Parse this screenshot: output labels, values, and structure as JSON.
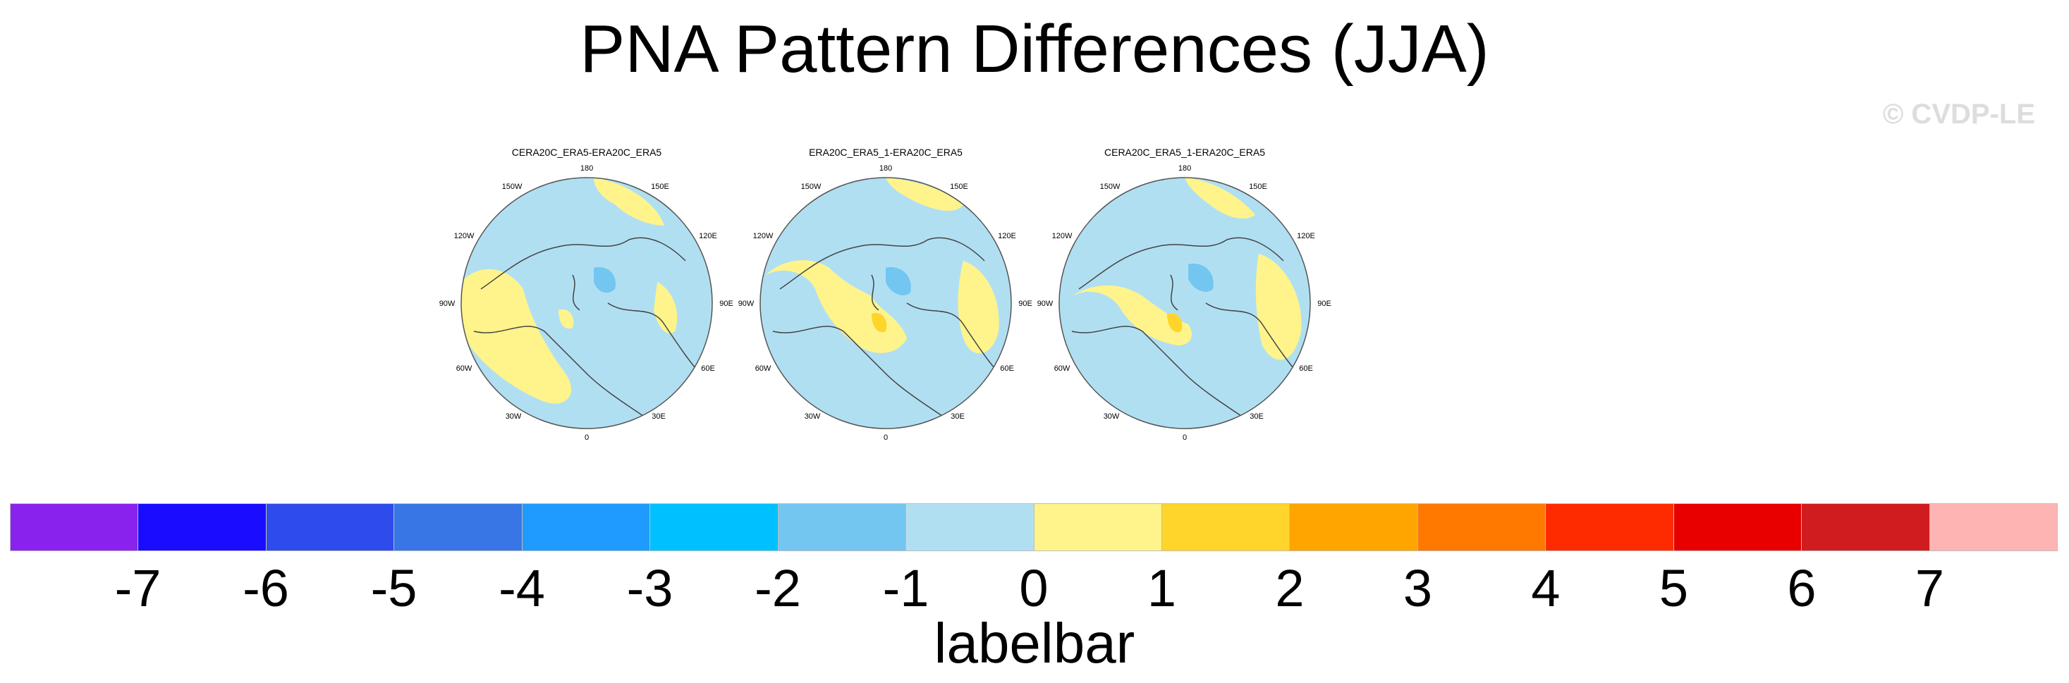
{
  "title": "PNA Pattern Differences (JJA)",
  "copyright": "© CVDP-LE",
  "panels": [
    {
      "title": "CERA20C_ERA5-ERA20C_ERA5"
    },
    {
      "title": "ERA20C_ERA5_1-ERA20C_ERA5"
    },
    {
      "title": "CERA20C_ERA5_1-ERA20C_ERA5"
    }
  ],
  "longitude_labels": [
    "180",
    "150E",
    "120E",
    "90E",
    "60E",
    "30E",
    "0",
    "30W",
    "60W",
    "90W",
    "120W",
    "150W"
  ],
  "labelbar": {
    "title": "labelbar",
    "ticks": [
      "-7",
      "-6",
      "-5",
      "-4",
      "-3",
      "-2",
      "-1",
      "0",
      "1",
      "2",
      "3",
      "4",
      "5",
      "6",
      "7"
    ],
    "colors": [
      "#8a22ee",
      "#1a0dff",
      "#2e4bec",
      "#3876e6",
      "#1f9bff",
      "#00c0ff",
      "#73c6f0",
      "#b1dff2",
      "#fff48b",
      "#ffd52b",
      "#ffa500",
      "#ff7800",
      "#ff2b00",
      "#e80000",
      "#d01c1e",
      "#ffb4b4"
    ]
  },
  "colors": {
    "ocean_fill": "#b1dff2",
    "positive_fill": "#fff48b",
    "negative_fill": "#73c6f0",
    "strong_positive_fill": "#ffd52b"
  }
}
